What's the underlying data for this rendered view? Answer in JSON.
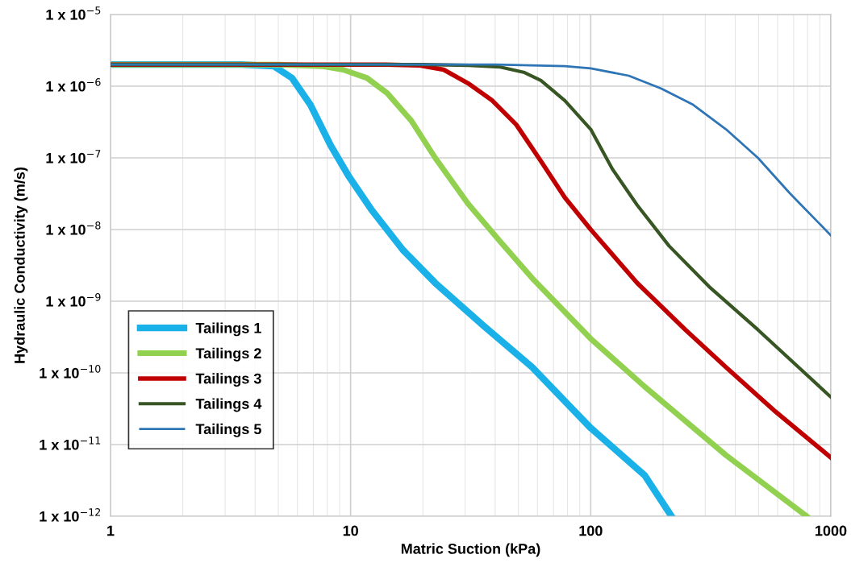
{
  "chart_data": {
    "type": "line",
    "xlabel": "Matric Suction (kPa)",
    "ylabel": "Hydraulic Conductivity (m/s)",
    "log": "xy",
    "grid": true,
    "legend": "bottom left",
    "marker": "none",
    "line_style": "solid",
    "xlim": [
      1,
      1000
    ],
    "xticks": [
      1,
      10,
      100,
      1000
    ],
    "ylim": [
      1e-12,
      1e-05
    ],
    "yticks": [
      {
        "value": 1e-12,
        "label": "1 x 10$^{−12}$"
      },
      {
        "value": 1e-11,
        "label": "1 x 10$^{−11}$"
      },
      {
        "value": 1e-10,
        "label": "1 x 10$^{−10}$"
      },
      {
        "value": 1e-09,
        "label": "1 x 10$^{−9}$"
      },
      {
        "value": 1e-08,
        "label": "1 x 10$^{−8}$"
      },
      {
        "value": 1e-07,
        "label": "1 x 10$^{−7}$"
      },
      {
        "value": 1e-06,
        "label": "1 x 10$^{−6}$"
      },
      {
        "value": 1e-05,
        "label": "1 x 10$^{−5}$"
      }
    ],
    "series": [
      {
        "name": "Tailings 1",
        "color": "#1ab0e8",
        "x": [
          1,
          3.5,
          4.8,
          5.7,
          6.8,
          8.25,
          9.8,
          12.2,
          16.5,
          22.5,
          35.9,
          57,
          100,
          168,
          217
        ],
        "values": [
          2e-06,
          2e-06,
          1.9e-06,
          1.3e-06,
          5.5e-07,
          1.5e-07,
          5.6e-08,
          1.9e-08,
          5.2e-09,
          1.8e-09,
          4.5e-10,
          1.2e-10,
          1.7e-11,
          3.7e-12,
          1e-12
        ]
      },
      {
        "name": "Tailings 2",
        "color": "#92d050",
        "x": [
          1,
          5,
          7.6,
          9.3,
          11.7,
          14.2,
          17.9,
          22.5,
          30.8,
          42,
          57,
          100,
          168,
          366,
          793
        ],
        "values": [
          2e-06,
          2e-06,
          1.9e-06,
          1.7e-06,
          1.3e-06,
          8e-07,
          3.3e-07,
          1e-07,
          2.3e-08,
          6.8e-09,
          2.1e-09,
          3e-10,
          6.4e-11,
          7.1e-12,
          1e-12
        ]
      },
      {
        "name": "Tailings 3",
        "color": "#c00000",
        "x": [
          1,
          14,
          19.4,
          24.4,
          30.8,
          38.9,
          49,
          62,
          78,
          100,
          156,
          248,
          366,
          580,
          1000
        ],
        "values": [
          2e-06,
          2e-06,
          1.95e-06,
          1.7e-06,
          1.1e-06,
          6.3e-07,
          2.9e-07,
          9e-08,
          2.8e-08,
          1e-08,
          1.8e-09,
          4e-10,
          1.2e-10,
          3e-11,
          6.6e-12
        ]
      },
      {
        "name": "Tailings 4",
        "color": "#375623",
        "x": [
          1,
          20,
          31,
          42,
          53,
          62,
          78,
          100,
          123,
          156,
          212,
          311,
          497,
          1000
        ],
        "values": [
          2e-06,
          2e-06,
          1.95e-06,
          1.85e-06,
          1.55e-06,
          1.2e-06,
          6.3e-07,
          2.5e-07,
          7e-08,
          2.2e-08,
          5.9e-09,
          1.6e-09,
          4e-10,
          4.6e-11
        ]
      },
      {
        "name": "Tailings 5",
        "color": "#2e75b6",
        "x": [
          1,
          40,
          78,
          100,
          144,
          196,
          267,
          366,
          497,
          675,
          1000
        ],
        "values": [
          2e-06,
          2e-06,
          1.9e-06,
          1.77e-06,
          1.4e-06,
          9.3e-07,
          5.5e-07,
          2.5e-07,
          1e-07,
          3.2e-08,
          8.3e-09
        ]
      }
    ]
  }
}
